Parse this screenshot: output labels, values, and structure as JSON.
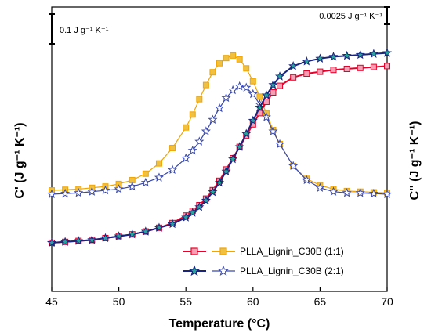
{
  "chart_data": {
    "type": "line",
    "xlabel": "Temperature (°C)",
    "ylabel_left": "C' (J g⁻¹ K⁻¹)",
    "ylabel_right": "C'' (J g⁻¹ K⁻¹)",
    "xlim": [
      45,
      70
    ],
    "xticks": [
      "45",
      "50",
      "55",
      "60",
      "65",
      "70"
    ],
    "scale_bar_left": "0.1 J g⁻¹ K⁻¹",
    "scale_bar_right": "0.0025 J g⁻¹ K⁻¹",
    "legend": [
      {
        "text": "PLLA_Lignin_C30B (1:1)",
        "color_c1": "#e8002a",
        "color_c2": "#f0a500",
        "marker": "square"
      },
      {
        "text": "PLLA_Lignin_C30B (2:1)",
        "color_c1": "#1a237e",
        "color_c2": "#3949ab",
        "marker": "star"
      }
    ],
    "series": [
      {
        "component": "C' (storage)",
        "x": [
          45,
          46,
          47,
          48,
          49,
          50,
          51,
          52,
          53,
          54,
          55,
          55.5,
          56,
          56.5,
          57,
          57.5,
          58,
          58.5,
          59,
          59.5,
          60,
          60.5,
          61,
          61.5,
          62,
          63,
          64,
          65,
          66,
          67,
          68,
          69,
          70
        ],
        "y": [
          0.0,
          0.01,
          0.02,
          0.03,
          0.05,
          0.07,
          0.09,
          0.12,
          0.16,
          0.21,
          0.29,
          0.34,
          0.4,
          0.47,
          0.56,
          0.66,
          0.78,
          0.9,
          1.02,
          1.14,
          1.26,
          1.38,
          1.5,
          1.6,
          1.67,
          1.76,
          1.8,
          1.82,
          1.84,
          1.85,
          1.86,
          1.87,
          1.88
        ],
        "facecolor": "#e8002a",
        "edgecolor": "#e8002a",
        "markerfill": "#f5a0b5",
        "marker": "square"
      },
      {
        "component": "C' (storage)",
        "x": [
          45,
          46,
          47,
          48,
          49,
          50,
          51,
          52,
          53,
          54,
          55,
          55.5,
          56,
          56.5,
          57,
          57.5,
          58,
          58.5,
          59,
          59.5,
          60,
          60.5,
          61,
          61.5,
          62,
          63,
          64,
          65,
          66,
          67,
          68,
          69,
          70
        ],
        "y": [
          0.0,
          0.01,
          0.02,
          0.03,
          0.05,
          0.07,
          0.09,
          0.12,
          0.16,
          0.2,
          0.27,
          0.32,
          0.38,
          0.45,
          0.54,
          0.64,
          0.76,
          0.89,
          1.02,
          1.16,
          1.3,
          1.44,
          1.57,
          1.68,
          1.77,
          1.88,
          1.93,
          1.96,
          1.98,
          1.99,
          2.0,
          2.01,
          2.02
        ],
        "facecolor": "#1a237e",
        "edgecolor": "#1a237e",
        "markerfill": "#26a69a",
        "marker": "star"
      },
      {
        "component": "C'' (loss)",
        "x": [
          45,
          46,
          47,
          48,
          49,
          50,
          51,
          52,
          53,
          54,
          55,
          55.5,
          56,
          56.5,
          57,
          57.5,
          58,
          58.5,
          59,
          59.5,
          60,
          60.5,
          61,
          61.5,
          62,
          63,
          64,
          65,
          66,
          67,
          68,
          69,
          70
        ],
        "y": [
          0.03,
          0.035,
          0.04,
          0.05,
          0.06,
          0.08,
          0.11,
          0.16,
          0.24,
          0.36,
          0.52,
          0.62,
          0.74,
          0.85,
          0.95,
          1.02,
          1.06,
          1.08,
          1.05,
          0.98,
          0.88,
          0.76,
          0.63,
          0.5,
          0.39,
          0.22,
          0.12,
          0.07,
          0.04,
          0.025,
          0.02,
          0.015,
          0.01
        ],
        "facecolor": "#e8002a",
        "edgecolor": "#f0a500",
        "markerfill": "#f0c040",
        "marker": "square"
      },
      {
        "component": "C'' (loss)",
        "x": [
          45,
          46,
          47,
          48,
          49,
          50,
          51,
          52,
          53,
          54,
          55,
          55.5,
          56,
          56.5,
          57,
          57.5,
          58,
          58.5,
          59,
          59.5,
          60,
          60.5,
          61,
          61.5,
          62,
          63,
          64,
          65,
          66,
          67,
          68,
          69,
          70
        ],
        "y": [
          0.0,
          0.005,
          0.01,
          0.02,
          0.03,
          0.04,
          0.06,
          0.09,
          0.13,
          0.19,
          0.28,
          0.34,
          0.41,
          0.49,
          0.58,
          0.67,
          0.75,
          0.81,
          0.84,
          0.83,
          0.78,
          0.7,
          0.6,
          0.49,
          0.39,
          0.22,
          0.11,
          0.05,
          0.02,
          0.01,
          0.01,
          0.005,
          0.0
        ],
        "facecolor": "#1a237e",
        "edgecolor": "#3949ab",
        "markerfill": "#ffffff",
        "marker": "star"
      }
    ]
  }
}
